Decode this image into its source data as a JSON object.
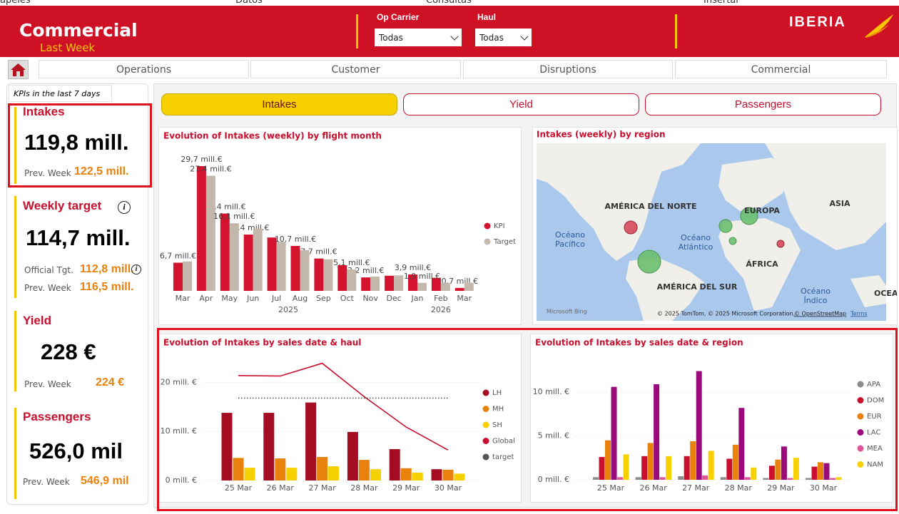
{
  "ribbon": [
    "apeles",
    "Datos",
    "Consultas",
    "Insertar"
  ],
  "header": {
    "title": "Commercial",
    "subtitle": "Last Week",
    "filters": [
      {
        "label": "Op Carrier",
        "value": "Todas"
      },
      {
        "label": "Haul",
        "value": "Todas"
      }
    ],
    "logo": "IBERIA"
  },
  "nav": {
    "tabs": [
      "Operations",
      "Customer",
      "Disruptions",
      "Commercial"
    ],
    "active": 3
  },
  "kpi_panel": {
    "caption": "KPIs in the last 7 days",
    "cards": [
      {
        "title": "Intakes",
        "value": "119,8 mill.",
        "rows": [
          {
            "label": "Prev. Week",
            "value": "122,5 mill."
          }
        ]
      },
      {
        "title": "Weekly target",
        "value": "114,7 mill.",
        "rows": [
          {
            "label": "Official Tgt.",
            "value": "112,8 mill."
          },
          {
            "label": "Prev. Week",
            "value": "116,5 mill."
          }
        ]
      },
      {
        "title": "Yield",
        "value": "228 €",
        "rows": [
          {
            "label": "Prev. Week",
            "value": "224 €"
          }
        ]
      },
      {
        "title": "Passengers",
        "value": "526,0 mil",
        "rows": [
          {
            "label": "Prev. Week",
            "value": "546,9 mil"
          }
        ]
      }
    ]
  },
  "subtabs": [
    "Intakes",
    "Yield",
    "Passengers"
  ],
  "map": {
    "title": "Intakes (weekly) by region",
    "labels": [
      [
        "AMÉRICA DEL NORTE"
      ],
      [
        "EUROPA"
      ],
      [
        "ASIA"
      ],
      [
        "Océano",
        "Pacífico"
      ],
      [
        "Océano",
        "Atlántico"
      ],
      [
        "ÁFRICA"
      ],
      [
        "AMÉRICA DEL SUR"
      ],
      [
        "Océano",
        "Índico"
      ],
      [
        "OCEAN"
      ]
    ],
    "provider": "Microsoft Bing",
    "attribution": "© 2025 TomTom, © 2025 Microsoft Corporation,",
    "osm": "© OpenStreetMap",
    "terms": "Terms"
  },
  "chart_data": [
    {
      "type": "bar",
      "title": "Evolution of Intakes (weekly) by flight month",
      "groups": [
        {
          "label": "2025",
          "categories": [
            "Mar",
            "Apr",
            "May",
            "Jun",
            "Jul",
            "Aug",
            "Sep",
            "Oct",
            "Nov",
            "Dec"
          ]
        },
        {
          "label": "2026",
          "categories": [
            "Jan",
            "Feb",
            "Mar"
          ]
        }
      ],
      "series": [
        {
          "name": "KPI",
          "color": "#d4142f",
          "values": [
            6.7,
            29.7,
            18.4,
            13.4,
            12.7,
            10.7,
            7.7,
            6.1,
            3.2,
            3.6,
            3.9,
            3.1,
            0.7
          ],
          "value_labels": [
            "6,7 mill.€",
            "29,7 mill.€",
            "18,4 mill.€",
            "13,4 mill.€",
            null,
            "10,7 mill.€",
            "7,7 mill.€",
            null,
            "3,2 mill.€",
            null,
            "3,9 mill.€",
            null,
            "0,7 mill.€"
          ]
        },
        {
          "name": "Target",
          "color": "#c4b8ad",
          "values": [
            7.0,
            27.4,
            16.1,
            14.8,
            11.7,
            9.7,
            7.5,
            5.1,
            3.4,
            3.7,
            1.9,
            1.9,
            1.9
          ],
          "value_labels": [
            null,
            "27,4 mill.€",
            "16,1 mill.€",
            null,
            null,
            null,
            null,
            "5,1 mill.€",
            null,
            null,
            "1,9 mill.€",
            null,
            null
          ]
        }
      ]
    },
    {
      "type": "bar",
      "title": "Evolution of Intakes by sales date & haul",
      "categories": [
        "25 Mar",
        "26 Mar",
        "27 Mar",
        "28 Mar",
        "29 Mar",
        "30 Mar"
      ],
      "ylim": [
        0,
        25
      ],
      "yticks": [
        {
          "value": 0,
          "label": "0 mill. €"
        },
        {
          "value": 10,
          "label": "10 mill. €"
        },
        {
          "value": 20,
          "label": "20 mill. €"
        }
      ],
      "grid": true,
      "series": [
        {
          "name": "LH",
          "color": "#a50d22",
          "values": [
            13.8,
            13.8,
            15.9,
            9.9,
            6.4,
            2.3
          ]
        },
        {
          "name": "MH",
          "color": "#e8820c",
          "values": [
            4.6,
            4.5,
            4.8,
            4.2,
            2.5,
            2.2
          ]
        },
        {
          "name": "SH",
          "color": "#f7d000",
          "values": [
            2.6,
            2.6,
            2.9,
            2.3,
            1.6,
            1.4
          ]
        },
        {
          "name": "Global",
          "color": "#c8102e",
          "type": "line",
          "values": [
            21.4,
            21.3,
            23.9,
            17.1,
            10.9,
            6.2
          ]
        },
        {
          "name": "target",
          "color": "#555555",
          "type": "line",
          "dotted": true,
          "values": [
            16.8,
            16.8,
            16.8,
            16.8,
            16.8,
            16.8
          ]
        }
      ]
    },
    {
      "type": "bar",
      "title": "Evolution of Intakes by sales date & region",
      "categories": [
        "25 Mar",
        "26 Mar",
        "27 Mar",
        "28 Mar",
        "29 Mar",
        "30 Mar"
      ],
      "ylim": [
        0,
        13.5
      ],
      "yticks": [
        {
          "value": 0,
          "label": "0 mill. €"
        },
        {
          "value": 5,
          "label": "5 mill. €"
        },
        {
          "value": 10,
          "label": "10 mill. €"
        }
      ],
      "grid": true,
      "series": [
        {
          "name": "APA",
          "color": "#8c8c8c",
          "values": [
            0.3,
            0.3,
            0.4,
            0.3,
            0.2,
            0.2
          ]
        },
        {
          "name": "DOM",
          "color": "#c8102e",
          "values": [
            2.6,
            2.7,
            2.7,
            2.4,
            1.6,
            1.5
          ]
        },
        {
          "name": "EUR",
          "color": "#e8820c",
          "values": [
            4.5,
            4.2,
            4.4,
            4.0,
            2.3,
            2.0
          ]
        },
        {
          "name": "LAC",
          "color": "#9b0a7a",
          "values": [
            10.6,
            10.9,
            12.4,
            8.2,
            3.8,
            1.9
          ]
        },
        {
          "name": "MEA",
          "color": "#e0559a",
          "values": [
            0.3,
            0.3,
            0.5,
            0.3,
            0.2,
            0.2
          ]
        },
        {
          "name": "NAM",
          "color": "#f7d000",
          "values": [
            2.9,
            2.7,
            3.3,
            1.4,
            2.5,
            0.3
          ]
        }
      ]
    }
  ]
}
